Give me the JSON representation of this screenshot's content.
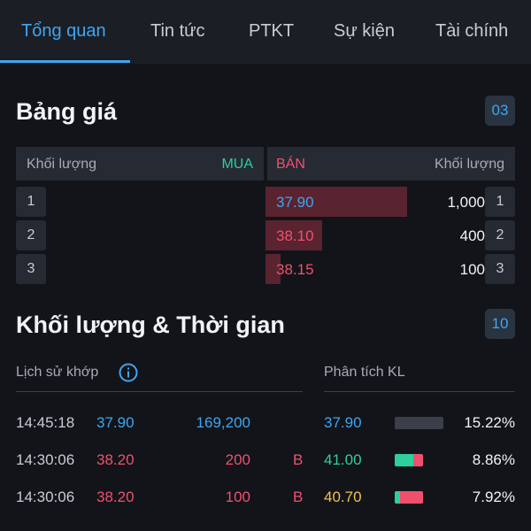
{
  "colors": {
    "accent": "#3ea6f2",
    "buy": "#2ecf9a",
    "sell": "#f0506e",
    "ref": "#f2c14e",
    "bar_neutral": "#3a3f4a"
  },
  "tabs": [
    {
      "label": "Tổng quan",
      "active": true
    },
    {
      "label": "Tin tức"
    },
    {
      "label": "PTKT"
    },
    {
      "label": "Sự kiện"
    },
    {
      "label": "Tài chính"
    }
  ],
  "price_board": {
    "title": "Bảng giá",
    "badge": "03",
    "header": {
      "bid_volume": "Khối lượng",
      "bid": "MUA",
      "ask": "BÁN",
      "ask_volume": "Khối lượng"
    },
    "rows": [
      {
        "index": "1",
        "ask_price": "37.90",
        "ask_volume": "1,000",
        "price_color": "accent",
        "depth": 0.57,
        "ask_index": "1"
      },
      {
        "index": "2",
        "ask_price": "38.10",
        "ask_volume": "400",
        "price_color": "sell",
        "depth": 0.23,
        "ask_index": "2"
      },
      {
        "index": "3",
        "ask_price": "38.15",
        "ask_volume": "100",
        "price_color": "sell",
        "depth": 0.06,
        "ask_index": "3"
      }
    ]
  },
  "volume_time": {
    "title": "Khối lượng & Thời gian",
    "badge": "10",
    "match_history_label": "Lịch sử khớp",
    "volume_analysis_label": "Phân tích KL",
    "trades": [
      {
        "time": "14:45:18",
        "price": "37.90",
        "volume": "169,200",
        "side": "",
        "price_color": "accent",
        "volume_color": "accent"
      },
      {
        "time": "14:30:06",
        "price": "38.20",
        "volume": "200",
        "side": "B",
        "price_color": "sell",
        "volume_color": "sell"
      },
      {
        "time": "14:30:06",
        "price": "38.20",
        "volume": "100",
        "side": "B",
        "price_color": "sell",
        "volume_color": "sell"
      }
    ],
    "analysis": [
      {
        "price": "37.90",
        "percent": "15.22%",
        "price_color": "accent",
        "buy_share": 0,
        "sell_share": 0
      },
      {
        "price": "41.00",
        "percent": "8.86%",
        "price_color": "buy",
        "buy_share": 0.65,
        "sell_share": 0.35
      },
      {
        "price": "40.70",
        "percent": "7.92%",
        "price_color": "ref",
        "buy_share": 0.2,
        "sell_share": 0.8
      }
    ]
  }
}
